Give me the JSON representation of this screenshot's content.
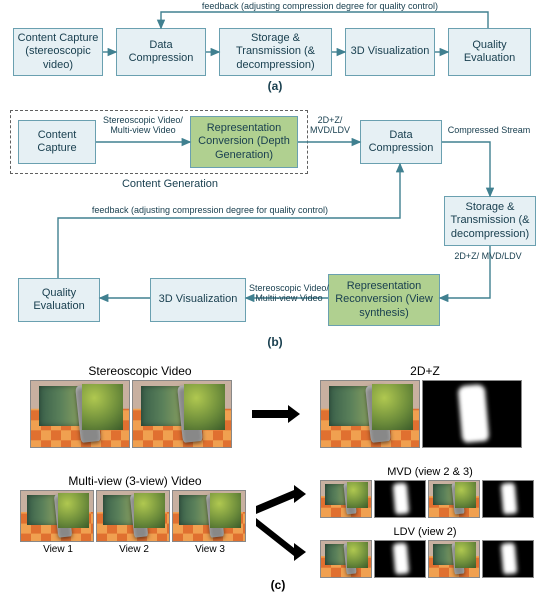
{
  "colors": {
    "box_bg_blue": "#e6f0f4",
    "box_bg_green": "#b0d090",
    "box_border": "#6aa0b0",
    "arrow": "#408090",
    "dashed_border": "#606060",
    "label_text": "#1a4050"
  },
  "typography": {
    "box_fontsize": 11,
    "edge_fontsize": 9,
    "section_fontsize": 12
  },
  "panel_a": {
    "label": "(a)",
    "feedback_text": "feedback (adjusting compression degree for quality control)",
    "boxes": {
      "capture": "Content Capture (stereoscopic video)",
      "compress": "Data Compression",
      "storage": "Storage & Transmission (& decompression)",
      "viz": "3D Visualization",
      "quality": "Quality Evaluation"
    }
  },
  "panel_b": {
    "label": "(b)",
    "feedback_text": "feedback (adjusting compression degree for quality control)",
    "content_gen_label": "Content Generation",
    "boxes": {
      "capture": "Content Capture",
      "repr_conv": "Representation Conversion (Depth Generation)",
      "compress": "Data Compression",
      "storage": "Storage & Transmission (& decompression)",
      "repr_reconv": "Representation Reconversion (View synthesis)",
      "viz": "3D Visualization",
      "quality": "Quality Evaluation"
    },
    "edges": {
      "cap_to_conv": "Stereoscopic Video/\nMulti-view Video",
      "conv_to_comp": "2D+Z/\nMVD/LDV",
      "comp_to_stor": "Compressed Stream",
      "stor_to_reconv": "2D+Z/\nMVD/LDV",
      "reconv_to_viz": "Stereoscopic Video/\nMultii-view Video"
    }
  },
  "panel_c": {
    "label": "(c)",
    "labels": {
      "stereo": "Stereoscopic Video",
      "twodz": "2D+Z",
      "multiview": "Multi-view (3-view) Video",
      "mvd": "MVD (view 2 & 3)",
      "ldv": "LDV (view 2)",
      "view1": "View 1",
      "view2": "View 2",
      "view3": "View 3",
      "mvd_sub": "(view 2 & 3)",
      "ldv_sub": "(view 2)"
    }
  }
}
